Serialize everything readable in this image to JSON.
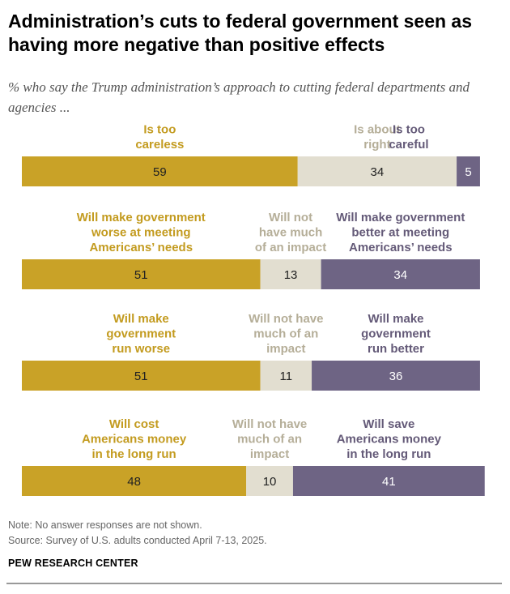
{
  "header": {
    "title": "Administration’s cuts to federal government seen as having more negative than positive effects",
    "subtitle": "% who say the Trump administration’s approach to cutting federal departments and agencies ..."
  },
  "footer": {
    "note": "Note: No answer responses are not shown.",
    "source": "Source: Survey of U.S. adults conducted April 7-13, 2025.",
    "credit": "PEW RESEARCH CENTER"
  },
  "colors": {
    "negative": "#C9A227",
    "neutral": "#E2DED0",
    "positive": "#6E6484",
    "negative_text": "#C39B1F",
    "neutral_text": "#B5AE98",
    "positive_text": "#645A78"
  },
  "chart_data": {
    "type": "bar",
    "stacked": true,
    "orientation": "horizontal",
    "rows": [
      {
        "segments": [
          {
            "label": [
              "Is too",
              "careless"
            ],
            "value": 59,
            "role": "negative"
          },
          {
            "label": [
              "Is about",
              "right"
            ],
            "value": 34,
            "role": "neutral"
          },
          {
            "label": [
              "Is too",
              "careful"
            ],
            "value": 5,
            "role": "positive"
          }
        ]
      },
      {
        "segments": [
          {
            "label": [
              "Will make government",
              "worse at meeting",
              "Americans’ needs"
            ],
            "value": 51,
            "role": "negative"
          },
          {
            "label": [
              "Will not",
              "have much",
              "of an impact"
            ],
            "value": 13,
            "role": "neutral"
          },
          {
            "label": [
              "Will make government",
              "better at meeting",
              "Americans’ needs"
            ],
            "value": 34,
            "role": "positive"
          }
        ]
      },
      {
        "segments": [
          {
            "label": [
              "Will make",
              "government",
              "run worse"
            ],
            "value": 51,
            "role": "negative"
          },
          {
            "label": [
              "Will not have",
              "much of an",
              "impact"
            ],
            "value": 11,
            "role": "neutral"
          },
          {
            "label": [
              "Will make",
              "government",
              "run better"
            ],
            "value": 36,
            "role": "positive"
          }
        ]
      },
      {
        "segments": [
          {
            "label": [
              "Will cost",
              "Americans money",
              "in the long run"
            ],
            "value": 48,
            "role": "negative"
          },
          {
            "label": [
              "Will not have",
              "much of an",
              "impact"
            ],
            "value": 10,
            "role": "neutral"
          },
          {
            "label": [
              "Will save",
              "Americans money",
              "in the long run"
            ],
            "value": 41,
            "role": "positive"
          }
        ]
      }
    ]
  }
}
